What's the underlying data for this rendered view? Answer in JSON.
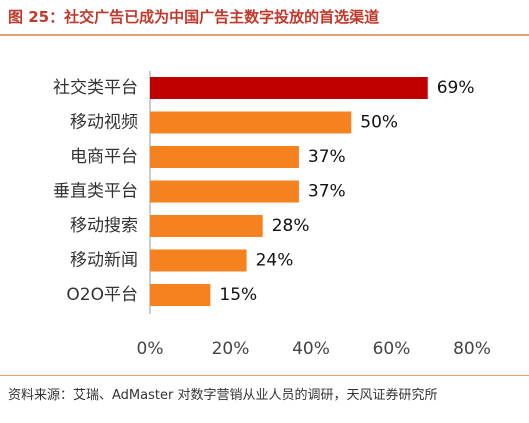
{
  "header": {
    "title": "图 25：社交广告已成为中国广告主数字投放的首选渠道"
  },
  "chart_data": {
    "type": "bar",
    "orientation": "horizontal",
    "categories": [
      "社交类平台",
      "移动视频",
      "电商平台",
      "垂直类平台",
      "移动搜索",
      "移动新闻",
      "O2O平台"
    ],
    "values": [
      69,
      50,
      37,
      37,
      28,
      24,
      15
    ],
    "value_labels": [
      "69%",
      "50%",
      "37%",
      "37%",
      "28%",
      "24%",
      "15%"
    ],
    "xlim": [
      0,
      80
    ],
    "xticks": [
      0,
      20,
      40,
      60,
      80
    ],
    "xtick_labels": [
      "0%",
      "20%",
      "40%",
      "60%",
      "80%"
    ],
    "grid": false,
    "colors": {
      "highlight": "#c00000",
      "default": "#f5821f"
    },
    "highlight_index": 0
  },
  "footer": {
    "source": "资料来源：艾瑞、AdMaster 对数字营销从业人员的调研，天风证券研究所"
  }
}
